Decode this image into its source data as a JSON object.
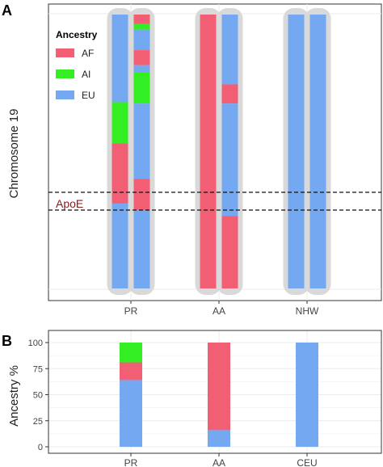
{
  "panel_a": {
    "label": "A",
    "ylabel": "Chromosome 19",
    "legend_title": "Ancestry",
    "legend_items": [
      {
        "key": "AF",
        "label": "AF"
      },
      {
        "key": "AI",
        "label": "AI"
      },
      {
        "key": "EU",
        "label": "EU"
      }
    ],
    "annotation": "ApoE",
    "x_ticks": [
      "PR",
      "AA",
      "NHW"
    ]
  },
  "panel_b": {
    "label": "B",
    "ylabel": "Ancestry %",
    "y_ticks": [
      "0",
      "25",
      "50",
      "75",
      "100"
    ],
    "x_ticks": [
      "PR",
      "AA",
      "CEU"
    ]
  },
  "colors": {
    "AF": "#f25f75",
    "AI": "#33ee22",
    "EU": "#74a9f1",
    "chromosome_bg": "#d9d9d9",
    "grid": "#ebebeb",
    "panel_border": "#333333",
    "annotation": "#8b1a1a"
  },
  "chart_data": [
    {
      "type": "bar",
      "title": "",
      "ylabel": "Chromosome 19",
      "categories": [
        "PR",
        "AA",
        "NHW"
      ],
      "ylim": [
        0,
        1
      ],
      "y_orientation": "top-to-bottom",
      "apoe_band": [
        0.645,
        0.715
      ],
      "haplotypes": [
        {
          "group": "PR",
          "segments": [
            {
              "ancestry": "EU",
              "from": 0.0,
              "to": 0.32
            },
            {
              "ancestry": "AI",
              "from": 0.32,
              "to": 0.47
            },
            {
              "ancestry": "AF",
              "from": 0.47,
              "to": 0.69
            },
            {
              "ancestry": "EU",
              "from": 0.69,
              "to": 1.0
            }
          ]
        },
        {
          "group": "PR",
          "segments": [
            {
              "ancestry": "AF",
              "from": 0.0,
              "to": 0.035
            },
            {
              "ancestry": "AI",
              "from": 0.035,
              "to": 0.055
            },
            {
              "ancestry": "EU",
              "from": 0.055,
              "to": 0.13
            },
            {
              "ancestry": "AF",
              "from": 0.13,
              "to": 0.185
            },
            {
              "ancestry": "EU",
              "from": 0.185,
              "to": 0.21
            },
            {
              "ancestry": "AI",
              "from": 0.21,
              "to": 0.325
            },
            {
              "ancestry": "EU",
              "from": 0.325,
              "to": 0.6
            },
            {
              "ancestry": "AF",
              "from": 0.6,
              "to": 0.715
            },
            {
              "ancestry": "EU",
              "from": 0.715,
              "to": 1.0
            }
          ]
        },
        {
          "group": "AA",
          "segments": [
            {
              "ancestry": "AF",
              "from": 0.0,
              "to": 1.0
            }
          ]
        },
        {
          "group": "AA",
          "segments": [
            {
              "ancestry": "EU",
              "from": 0.0,
              "to": 0.255
            },
            {
              "ancestry": "AF",
              "from": 0.255,
              "to": 0.325
            },
            {
              "ancestry": "EU",
              "from": 0.325,
              "to": 0.735
            },
            {
              "ancestry": "AF",
              "from": 0.735,
              "to": 1.0
            }
          ]
        },
        {
          "group": "NHW",
          "segments": [
            {
              "ancestry": "EU",
              "from": 0.0,
              "to": 1.0
            }
          ]
        },
        {
          "group": "NHW",
          "segments": [
            {
              "ancestry": "EU",
              "from": 0.0,
              "to": 1.0
            }
          ]
        }
      ]
    },
    {
      "type": "bar",
      "stacked": true,
      "title": "",
      "xlabel": "",
      "ylabel": "Ancestry %",
      "categories": [
        "PR",
        "AA",
        "CEU"
      ],
      "ylim": [
        0,
        100
      ],
      "series": [
        {
          "name": "EU",
          "values": [
            64,
            16,
            100
          ]
        },
        {
          "name": "AF",
          "values": [
            17,
            84,
            0
          ]
        },
        {
          "name": "AI",
          "values": [
            19,
            0,
            0
          ]
        }
      ]
    }
  ]
}
